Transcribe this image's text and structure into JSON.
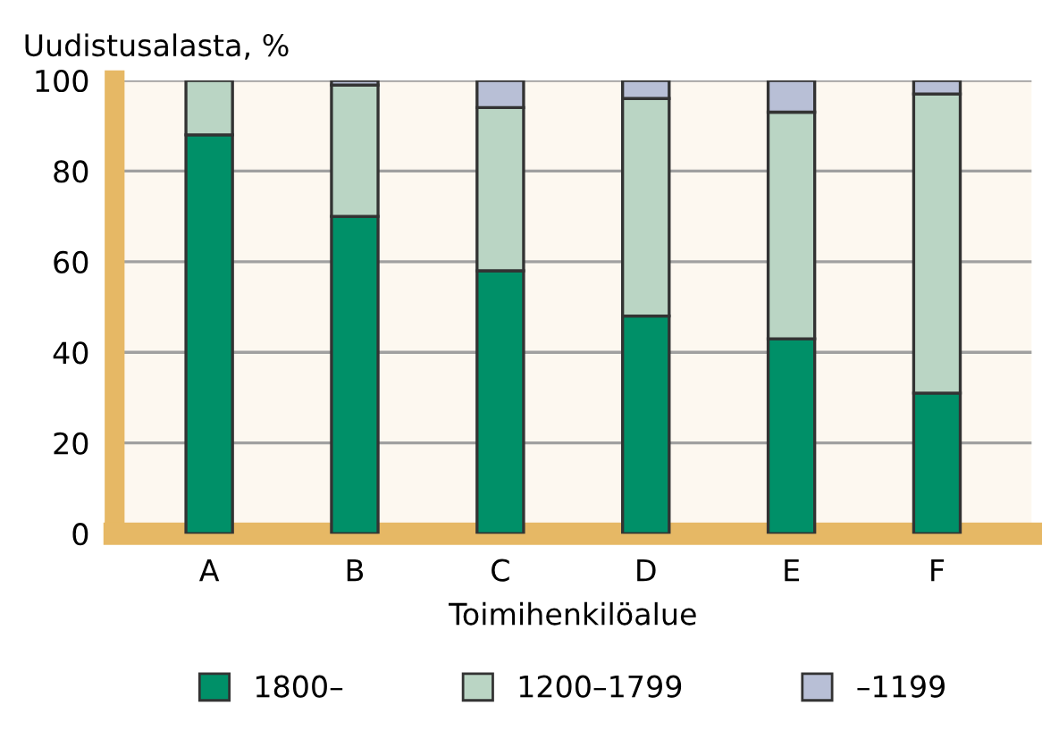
{
  "chart_data": {
    "type": "bar",
    "stacked": true,
    "ylabel": "Uudistusalasta, %",
    "xlabel": "Toimihenkilöalue",
    "categories": [
      "A",
      "B",
      "C",
      "D",
      "E",
      "F"
    ],
    "series": [
      {
        "name": "1800–",
        "color": "#009068",
        "values": [
          88,
          70,
          58,
          48,
          43,
          31
        ]
      },
      {
        "name": "1200–1799",
        "color": "#bad5c4",
        "values": [
          12,
          29,
          36,
          48,
          50,
          66
        ]
      },
      {
        "name": "–1199",
        "color": "#b8bfd6",
        "values": [
          null,
          1,
          6,
          4,
          7,
          3
        ]
      }
    ],
    "ylim": [
      0,
      100
    ],
    "yticks": [
      0,
      20,
      40,
      60,
      80,
      100
    ],
    "grid": "y",
    "legend": "bottom"
  }
}
